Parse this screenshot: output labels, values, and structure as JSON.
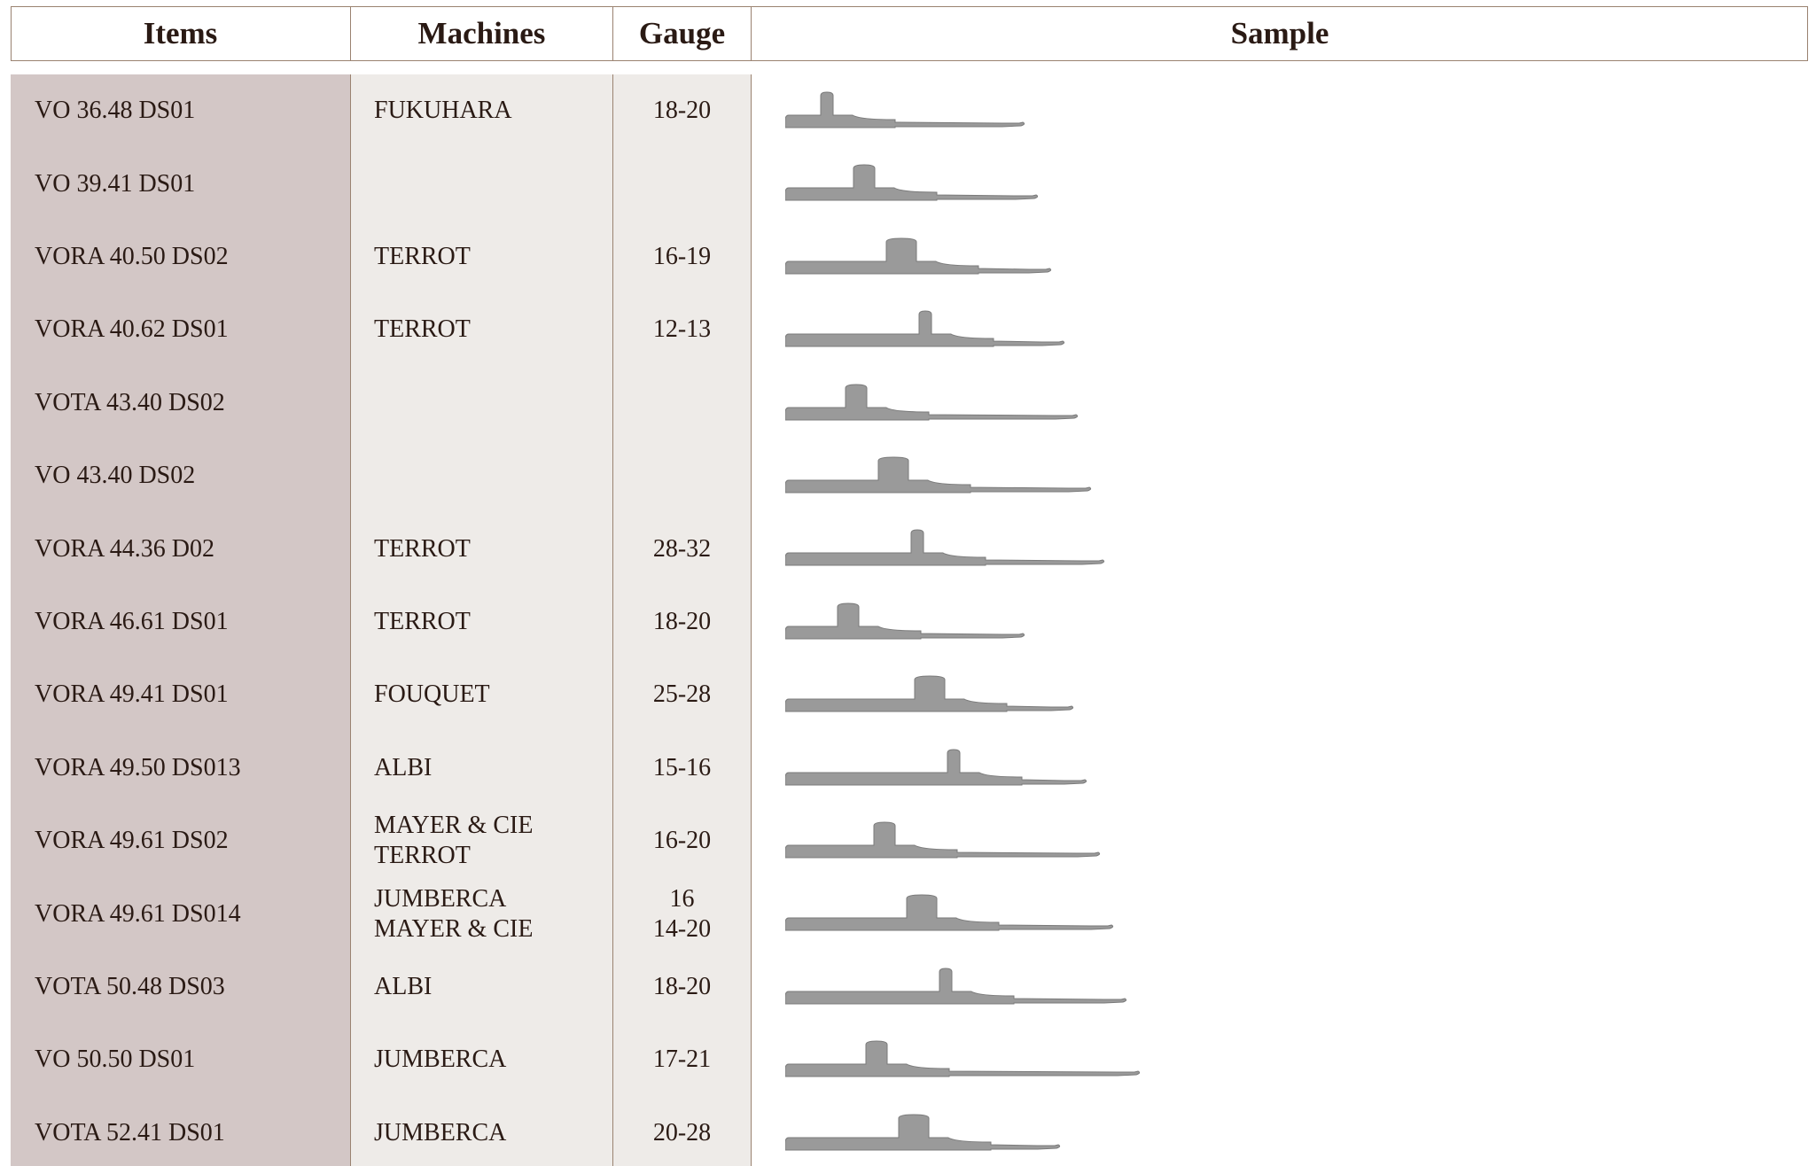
{
  "table": {
    "header": [
      "Items",
      "Machines",
      "Gauge",
      "Sample"
    ],
    "rows": [
      {
        "item": "VO 36.48 DS01",
        "machines": [
          "FUKUHARA"
        ],
        "gauge": [
          "18-20"
        ]
      },
      {
        "item": "VO 39.41 DS01",
        "machines": [],
        "gauge": []
      },
      {
        "item": "VORA 40.50 DS02",
        "machines": [
          "TERROT"
        ],
        "gauge": [
          "16-19"
        ]
      },
      {
        "item": "VORA 40.62 DS01",
        "machines": [
          "TERROT"
        ],
        "gauge": [
          "12-13"
        ]
      },
      {
        "item": "VOTA 43.40 DS02",
        "machines": [],
        "gauge": []
      },
      {
        "item": "VO 43.40 DS02",
        "machines": [],
        "gauge": []
      },
      {
        "item": "VORA 44.36 D02",
        "machines": [
          "TERROT"
        ],
        "gauge": [
          "28-32"
        ]
      },
      {
        "item": "VORA 46.61 DS01",
        "machines": [
          "TERROT"
        ],
        "gauge": [
          "18-20"
        ]
      },
      {
        "item": "VORA 49.41 DS01",
        "machines": [
          "FOUQUET"
        ],
        "gauge": [
          "25-28"
        ]
      },
      {
        "item": "VORA 49.50 DS013",
        "machines": [
          "ALBI"
        ],
        "gauge": [
          "15-16"
        ]
      },
      {
        "item": "VORA 49.61 DS02",
        "machines": [
          "MAYER & CIE",
          "TERROT"
        ],
        "gauge": [
          "16-20"
        ]
      },
      {
        "item": "VORA 49.61 DS014",
        "machines": [
          "JUMBERCA",
          "MAYER & CIE"
        ],
        "gauge": [
          "16",
          "14-20"
        ]
      },
      {
        "item": "VOTA 50.48 DS03",
        "machines": [
          "ALBI"
        ],
        "gauge": [
          "18-20"
        ]
      },
      {
        "item": "VO 50.50 DS01",
        "machines": [
          "JUMBERCA"
        ],
        "gauge": [
          "17-21"
        ]
      },
      {
        "item": "VOTA 52.41 DS01",
        "machines": [
          "JUMBERCA"
        ],
        "gauge": [
          "20-28"
        ]
      }
    ]
  }
}
